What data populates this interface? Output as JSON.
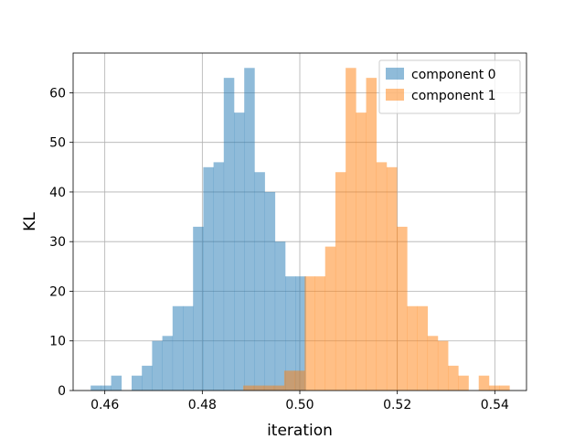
{
  "chart_data": {
    "type": "bar",
    "subtype": "histogram",
    "xlabel": "iteration",
    "ylabel": "KL",
    "xlim": [
      0.4535,
      0.5465
    ],
    "ylim": [
      0,
      68
    ],
    "grid": true,
    "legend_position": "top-right",
    "x_ticks": [
      0.46,
      0.48,
      0.5,
      0.52,
      0.54
    ],
    "x_tick_labels": [
      "0.46",
      "0.48",
      "0.50",
      "0.52",
      "0.54"
    ],
    "y_ticks": [
      0,
      10,
      20,
      30,
      40,
      50,
      60
    ],
    "y_tick_labels": [
      "0",
      "10",
      "20",
      "30",
      "40",
      "50",
      "60"
    ],
    "series": [
      {
        "name": "component 0",
        "color": "#1f77b4",
        "alpha": 0.5,
        "bins": [
          [
            0.4571,
            0.4592,
            1
          ],
          [
            0.4592,
            0.4613,
            1
          ],
          [
            0.4613,
            0.4634,
            3
          ],
          [
            0.4634,
            0.4655,
            0
          ],
          [
            0.4655,
            0.4676,
            3
          ],
          [
            0.4676,
            0.4697,
            5
          ],
          [
            0.4697,
            0.4718,
            10
          ],
          [
            0.4718,
            0.4739,
            11
          ],
          [
            0.4739,
            0.476,
            17
          ],
          [
            0.476,
            0.4781,
            17
          ],
          [
            0.4781,
            0.4802,
            33
          ],
          [
            0.4802,
            0.4823,
            45
          ],
          [
            0.4823,
            0.4844,
            46
          ],
          [
            0.4844,
            0.4865,
            63
          ],
          [
            0.4865,
            0.4886,
            56
          ],
          [
            0.4886,
            0.4907,
            65
          ],
          [
            0.4907,
            0.4928,
            44
          ],
          [
            0.4928,
            0.4949,
            40
          ],
          [
            0.4949,
            0.497,
            30
          ],
          [
            0.497,
            0.4991,
            23
          ],
          [
            0.4991,
            0.5012,
            23
          ]
        ]
      },
      {
        "name": "component 1",
        "color": "#ff7f0e",
        "alpha": 0.5,
        "bins": [
          [
            0.4884,
            0.4905,
            1
          ],
          [
            0.4905,
            0.4926,
            1
          ],
          [
            0.4926,
            0.4947,
            1
          ],
          [
            0.4947,
            0.4968,
            1
          ],
          [
            0.4968,
            0.4989,
            4
          ],
          [
            0.4989,
            0.501,
            4
          ],
          [
            0.501,
            0.5031,
            23
          ],
          [
            0.5031,
            0.5052,
            23
          ],
          [
            0.5052,
            0.5073,
            29
          ],
          [
            0.5073,
            0.5094,
            44
          ],
          [
            0.5094,
            0.5115,
            65
          ],
          [
            0.5115,
            0.5136,
            56
          ],
          [
            0.5136,
            0.5157,
            63
          ],
          [
            0.5157,
            0.5178,
            46
          ],
          [
            0.5178,
            0.5199,
            45
          ],
          [
            0.5199,
            0.522,
            33
          ],
          [
            0.522,
            0.5241,
            17
          ],
          [
            0.5241,
            0.5262,
            17
          ],
          [
            0.5262,
            0.5283,
            11
          ],
          [
            0.5283,
            0.5304,
            10
          ],
          [
            0.5304,
            0.5325,
            5
          ],
          [
            0.5325,
            0.5346,
            3
          ],
          [
            0.5346,
            0.5367,
            0
          ],
          [
            0.5367,
            0.5388,
            3
          ],
          [
            0.5388,
            0.5409,
            1
          ],
          [
            0.5409,
            0.543,
            1
          ]
        ]
      }
    ]
  }
}
